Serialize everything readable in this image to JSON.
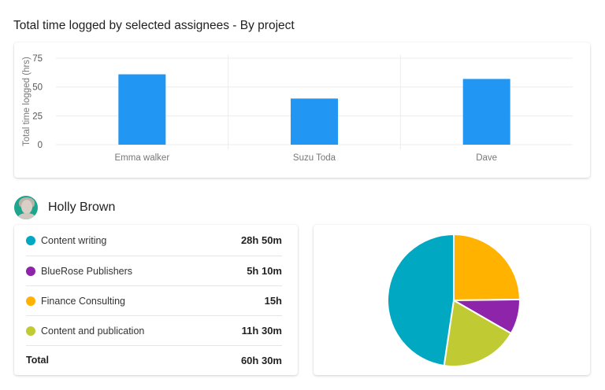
{
  "header": {
    "title": "Total time logged by selected assignees - By project"
  },
  "person": {
    "name": "Holly Brown"
  },
  "projects": {
    "items": [
      {
        "label": "Content writing",
        "value": "28h 50m",
        "color": "#00a8c2"
      },
      {
        "label": "BlueRose Publishers",
        "value": "5h 10m",
        "color": "#8e24aa"
      },
      {
        "label": "Finance Consulting",
        "value": "15h",
        "color": "#ffb300"
      },
      {
        "label": "Content and publication",
        "value": "11h 30m",
        "color": "#c0ca33"
      }
    ],
    "total_label": "Total",
    "total_value": "60h 30m"
  },
  "chart_data": [
    {
      "type": "bar",
      "title": "Total time logged by selected assignees - By project",
      "categories": [
        "Emma walker",
        "Suzu Toda",
        "Dave"
      ],
      "values": [
        61,
        40,
        57
      ],
      "xlabel": "",
      "ylabel": "Total time  logged (hrs)",
      "ylim": [
        0,
        75
      ],
      "yticks": [
        0,
        25,
        50,
        75
      ],
      "grid": true,
      "color": "#2196f3"
    },
    {
      "type": "pie",
      "title": "Holly Brown",
      "labels": [
        "Finance Consulting",
        "BlueRose Publishers",
        "Content and publication",
        "Content writing"
      ],
      "values": [
        15,
        5.17,
        11.5,
        28.83
      ],
      "colors": [
        "#ffb300",
        "#8e24aa",
        "#c0ca33",
        "#00a8c2"
      ],
      "start_angle": "top, clockwise"
    }
  ]
}
